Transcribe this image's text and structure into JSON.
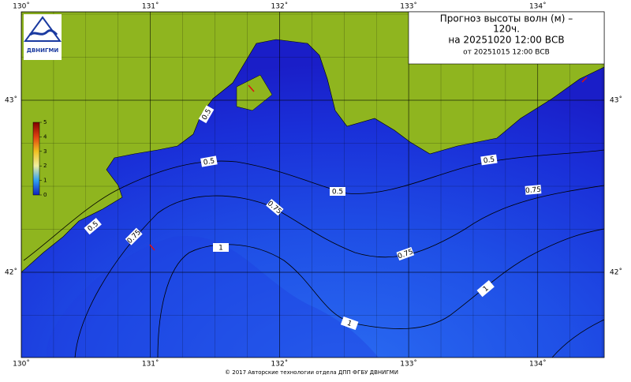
{
  "title_lines": [
    "Прогноз высоты волн (м) –",
    "120ч.",
    "на 20251020 12:00 ВСВ",
    "от 20251015 12:00 ВСВ"
  ],
  "logo": "ДВНИГМИ",
  "lon_ticks": [
    {
      "value": 130,
      "label": "130˚"
    },
    {
      "value": 131,
      "label": "131˚"
    },
    {
      "value": 132,
      "label": "132˚"
    },
    {
      "value": 133,
      "label": "133˚"
    },
    {
      "value": 134,
      "label": "134˚"
    }
  ],
  "lat_ticks": [
    {
      "value": 43,
      "label": "43˚"
    },
    {
      "value": 42,
      "label": "42˚"
    }
  ],
  "colorbar_ticks": [
    0,
    1,
    2,
    3,
    4,
    5
  ],
  "contour_labels": [
    "0.5",
    "0.5",
    "0.5",
    "0.5",
    "0.75",
    "0.75",
    "0.75",
    "0.75",
    "1",
    "1",
    "1",
    "0.5"
  ],
  "footer": "© 2017 Авторские технологии отдела ДПП ФГБУ ДВНИГМИ"
}
